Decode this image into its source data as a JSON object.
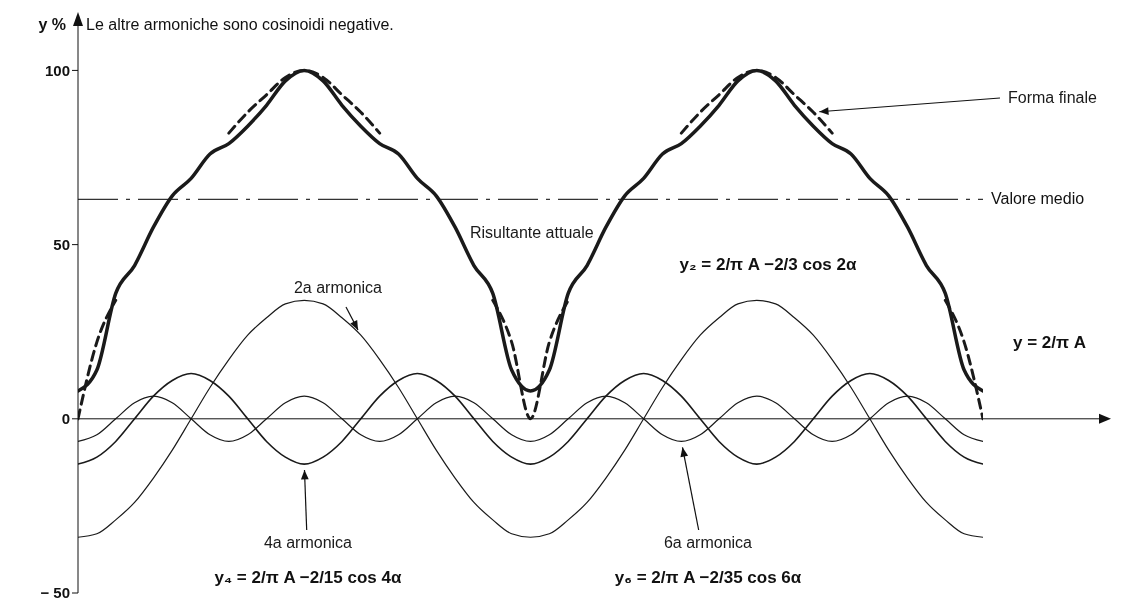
{
  "chart_data": {
    "type": "line",
    "ylabel": "y %",
    "categories": [
      null,
      null,
      null,
      null,
      null,
      null,
      null,
      null,
      null,
      null,
      null,
      null,
      null,
      null,
      null,
      null,
      null,
      null,
      null,
      null,
      null,
      null,
      null,
      null,
      null,
      null,
      null,
      null,
      null,
      null,
      null,
      null,
      null,
      null,
      null,
      null,
      null,
      null,
      null,
      null,
      null,
      null,
      null,
      null,
      null,
      null,
      null,
      null,
      null
    ],
    "ylim": [
      -50,
      105
    ],
    "yticks": [
      {
        "value": -50,
        "label": "− 50"
      },
      0,
      50,
      100
    ],
    "tick_labels": "y",
    "line_style": "solid",
    "series": [
      {
        "name": "Risultante attuale",
        "color": "#1a1a1a",
        "values": [
          8,
          14,
          36,
          44,
          55,
          64,
          69,
          76,
          79,
          84,
          90,
          97,
          100,
          97,
          90,
          84,
          79,
          76,
          69,
          64,
          55,
          44,
          36,
          14,
          8,
          14,
          36,
          44,
          55,
          64,
          69,
          76,
          79,
          84,
          90,
          97,
          100,
          97,
          90,
          84,
          79,
          76,
          69,
          64,
          55,
          44,
          36,
          14,
          8
        ]
      },
      {
        "name": "Forma finale",
        "color": "#1a1a1a",
        "line_style": "dashed",
        "values": [
          0,
          22,
          34,
          null,
          null,
          null,
          null,
          null,
          82,
          88,
          93,
          98,
          100,
          98,
          93,
          88,
          82,
          null,
          null,
          null,
          null,
          null,
          34,
          22,
          0,
          22,
          34,
          null,
          null,
          null,
          null,
          null,
          82,
          88,
          93,
          98,
          100,
          98,
          93,
          88,
          82,
          null,
          null,
          null,
          null,
          null,
          34,
          22,
          0
        ]
      },
      {
        "name": "2a armonica",
        "color": "#1a1a1a",
        "values": [
          -34,
          -33,
          -29,
          -24,
          -17,
          -9,
          0,
          9,
          17,
          24,
          29,
          33,
          34,
          33,
          29,
          24,
          17,
          9,
          0,
          -9,
          -17,
          -24,
          -29,
          -33,
          -34,
          -33,
          -29,
          -24,
          -17,
          -9,
          0,
          9,
          17,
          24,
          29,
          33,
          34,
          33,
          29,
          24,
          17,
          9,
          0,
          -9,
          -17,
          -24,
          -29,
          -33,
          -34
        ]
      },
      {
        "name": "4a armonica",
        "color": "#1a1a1a",
        "values": [
          -13,
          -11,
          -6.5,
          0,
          6.5,
          11,
          13,
          11,
          6.5,
          0,
          -6.5,
          -11,
          -13,
          -11,
          -6.5,
          0,
          6.5,
          11,
          13,
          11,
          6.5,
          0,
          -6.5,
          -11,
          -13,
          -11,
          -6.5,
          0,
          6.5,
          11,
          13,
          11,
          6.5,
          0,
          -6.5,
          -11,
          -13,
          -11,
          -6.5,
          0,
          6.5,
          11,
          13,
          11,
          6.5,
          0,
          -6.5,
          -11,
          -13
        ]
      },
      {
        "name": "6a armonica",
        "color": "#1a1a1a",
        "values": [
          -6.5,
          -4.6,
          0,
          4.6,
          6.5,
          4.6,
          0,
          -4.6,
          -6.5,
          -4.6,
          0,
          4.6,
          6.5,
          4.6,
          0,
          -4.6,
          -6.5,
          -4.6,
          0,
          4.6,
          6.5,
          4.6,
          0,
          -4.6,
          -6.5,
          -4.6,
          0,
          4.6,
          6.5,
          4.6,
          0,
          -4.6,
          -6.5,
          -4.6,
          0,
          4.6,
          6.5,
          4.6,
          0,
          -4.6,
          -6.5,
          -4.6,
          0,
          4.6,
          6.5,
          4.6,
          0,
          -4.6,
          -6.5
        ]
      }
    ],
    "ref_lines": [
      {
        "axis": "y",
        "value": 63,
        "label": "Valore medio",
        "line_style": "dashed",
        "color": "#333333"
      }
    ],
    "annotations": [
      "Le altre armoniche sono cosinoidi negative.",
      "y₂ = 2/π A −2/3 cos 2α",
      "y = 2/π A",
      "y₄ = 2/π A −2/15 cos 4α",
      "y₆ = 2/π A −2/35 cos 6α"
    ]
  }
}
